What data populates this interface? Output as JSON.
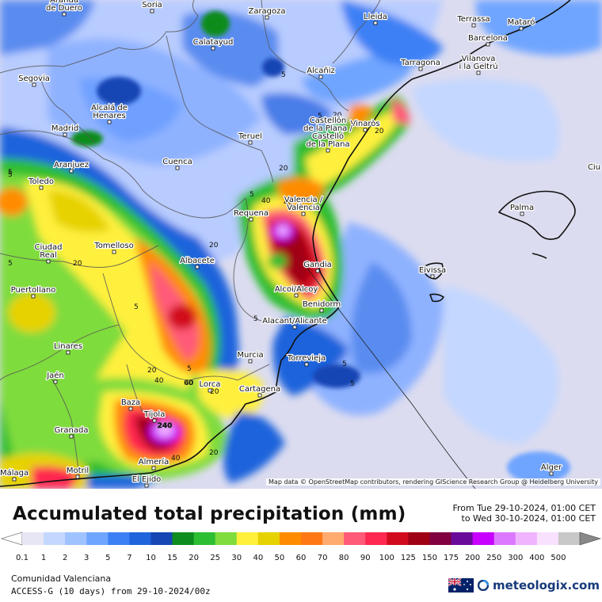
{
  "title": "Accumulated total precipitation (mm)",
  "period": {
    "from": "From Tue 29-10-2024, 01:00 CET",
    "to": "to Wed 30-10-2024, 01:00 CET"
  },
  "attribution": "Map data © OpenStreetMap contributors, rendering GIScience Research Group @ Heidelberg University",
  "footer": {
    "region": "Comunidad Valenciana",
    "model": "ACCESS-G (10 days) from 29-10-2024/00z",
    "brand": "meteologix.com"
  },
  "legend": {
    "values": [
      "0.1",
      "1",
      "2",
      "3",
      "5",
      "7",
      "10",
      "15",
      "20",
      "25",
      "30",
      "40",
      "50",
      "60",
      "70",
      "80",
      "90",
      "100",
      "125",
      "150",
      "175",
      "200",
      "250",
      "300",
      "400",
      "500"
    ],
    "colors": [
      "#e6e6f5",
      "#c3d7ff",
      "#9fc3ff",
      "#6fa5ff",
      "#3c80f5",
      "#1f63dc",
      "#1645b4",
      "#0f8c1e",
      "#2dbe32",
      "#7fdc3c",
      "#fff03c",
      "#e6d200",
      "#ff8c00",
      "#ff7814",
      "#ffaa6e",
      "#ff5a78",
      "#ff2850",
      "#d20a1e",
      "#a00014",
      "#800040",
      "#6a0a9a",
      "#c800ff",
      "#dc78ff",
      "#f0b4ff",
      "#f8e0ff",
      "#c8c8c8"
    ]
  },
  "cities": [
    {
      "name": "Aranda\nde Duero"
    },
    {
      "name": "Soria"
    },
    {
      "name": "Zaragoza"
    },
    {
      "name": "Lleida"
    },
    {
      "name": "Terrassa"
    },
    {
      "name": "Mataró"
    },
    {
      "name": "Barcelona"
    },
    {
      "name": "Calatayud"
    },
    {
      "name": "Alcañiz"
    },
    {
      "name": "Tarragona"
    },
    {
      "name": "Vilanova\ni la Geltrú"
    },
    {
      "name": "Segovia"
    },
    {
      "name": "Alcalá de\nHenares"
    },
    {
      "name": "Madrid"
    },
    {
      "name": "Teruel"
    },
    {
      "name": "Vinaròs"
    },
    {
      "name": "Castellón\nde la Plana /\nCastelló\nde la Plana"
    },
    {
      "name": "Aranjuez"
    },
    {
      "name": "Cuenca"
    },
    {
      "name": "Toledo"
    },
    {
      "name": "Valencia /\nValència"
    },
    {
      "name": "Requena"
    },
    {
      "name": "Palma"
    },
    {
      "name": "Tomelloso"
    },
    {
      "name": "Ciudad\nReal"
    },
    {
      "name": "Albacete"
    },
    {
      "name": "Gandia"
    },
    {
      "name": "Eivissa"
    },
    {
      "name": "Puertollano"
    },
    {
      "name": "Alcoi/Alcoy"
    },
    {
      "name": "Benidorm"
    },
    {
      "name": "Alacant/Alicante"
    },
    {
      "name": "Linares"
    },
    {
      "name": "Murcia"
    },
    {
      "name": "Torrevieja"
    },
    {
      "name": "Jaén"
    },
    {
      "name": "Lorca"
    },
    {
      "name": "Cartagena"
    },
    {
      "name": "Baza"
    },
    {
      "name": "Tíjola"
    },
    {
      "name": "Granada"
    },
    {
      "name": "Almería"
    },
    {
      "name": "Motril"
    },
    {
      "name": "Málaga"
    },
    {
      "name": "El Ejido"
    },
    {
      "name": "Alger"
    },
    {
      "name": "Ciu"
    }
  ],
  "contour_labels": [
    "5",
    "5",
    "20",
    "20",
    "40",
    "40",
    "20",
    "5",
    "5",
    "5",
    "5",
    "5",
    "20",
    "20",
    "40",
    "60",
    "40",
    "20",
    "40",
    "5",
    "5",
    "5",
    "20",
    "5",
    "20",
    "240"
  ]
}
